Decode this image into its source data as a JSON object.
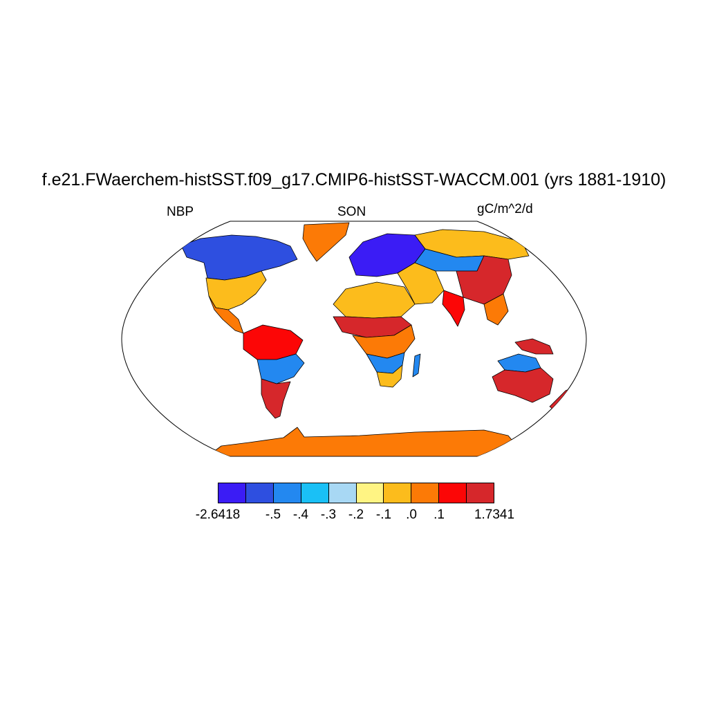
{
  "title": "f.e21.FWaerchem-histSST.f09_g17.CMIP6-histSST-WACCM.001 (yrs 1881-1910)",
  "left_label": "NBP",
  "center_label": "SON",
  "right_label": "gC/m^2/d",
  "colorbar": {
    "colors": [
      "#3b1cf5",
      "#2e4fe0",
      "#2388f0",
      "#1ac0f6",
      "#a8d8f4",
      "#fff483",
      "#fcbc1c",
      "#fc7a06",
      "#fc0606",
      "#d6272b"
    ],
    "labels": [
      "-2.6418",
      "-.5",
      "-.4",
      "-.3",
      "-.2",
      "-.1",
      ".0",
      ".1",
      "1.7341"
    ]
  },
  "region_colors": {
    "ocean": "#ffffff",
    "greenland": "#fc7a06",
    "antarctica": "#fc7a06",
    "canada": "#2e4fe0",
    "usa": "#fcbc1c",
    "mexico": "#fc7a06",
    "south_america_north": "#fc0606",
    "south_america_east": "#2388f0",
    "argentina": "#d6272b",
    "europe": "#3b1cf5",
    "siberia": "#fcbc1c",
    "sahara": "#fcbc1c",
    "sahel": "#d6272b",
    "central_africa": "#fc7a06",
    "southern_africa": "#2388f0",
    "south_africa": "#fcbc1c",
    "middle_east": "#fcbc1c",
    "central_asia": "#2388f0",
    "india": "#fc0606",
    "china": "#d6272b",
    "southeast_asia": "#fc7a06",
    "indonesia": "#d6272b",
    "australia_north": "#2388f0",
    "australia": "#d6272b",
    "new_zealand": "#d6272b",
    "madagascar": "#2388f0"
  }
}
